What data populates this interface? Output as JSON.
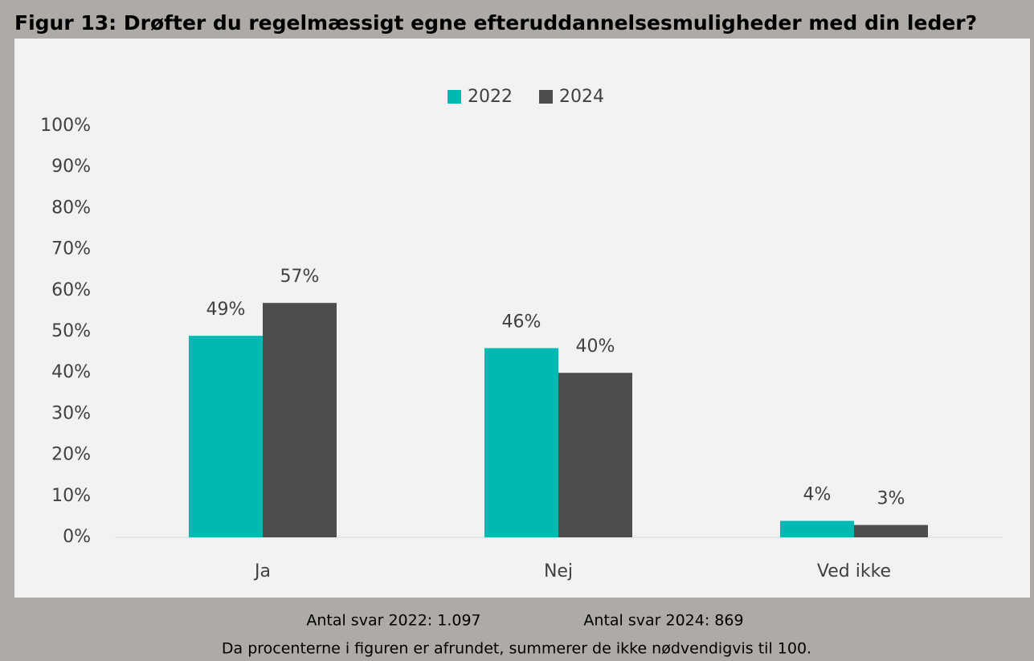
{
  "chart_data": {
    "type": "bar",
    "title": "Figur 13: Drøfter du regelmæssigt egne efteruddannelsesmuligheder med din leder?",
    "categories": [
      "Ja",
      "Nej",
      "Ved ikke"
    ],
    "series": [
      {
        "name": "2022",
        "color": "#00b9b3",
        "values": [
          49,
          46,
          4
        ],
        "value_labels": [
          "49%",
          "46%",
          "4%"
        ]
      },
      {
        "name": "2024",
        "color": "#4d4d4d",
        "values": [
          57,
          40,
          3
        ],
        "value_labels": [
          "57%",
          "40%",
          "3%"
        ]
      }
    ],
    "ylim": [
      0,
      100
    ],
    "yticks": [
      {
        "value": 0,
        "label": "0%"
      },
      {
        "value": 10,
        "label": "10%"
      },
      {
        "value": 20,
        "label": "20%"
      },
      {
        "value": 30,
        "label": "30%"
      },
      {
        "value": 40,
        "label": "40%"
      },
      {
        "value": 50,
        "label": "50%"
      },
      {
        "value": 60,
        "label": "60%"
      },
      {
        "value": 70,
        "label": "70%"
      },
      {
        "value": 80,
        "label": "80%"
      },
      {
        "value": 90,
        "label": "90%"
      },
      {
        "value": 100,
        "label": "100%"
      }
    ],
    "legend": "top",
    "notes": [
      "Antal svar 2022: 1.097",
      "Antal svar 2024: 869",
      "Da procenterne i figuren er afrundet, summerer de ikke nødvendigvis til 100."
    ]
  }
}
